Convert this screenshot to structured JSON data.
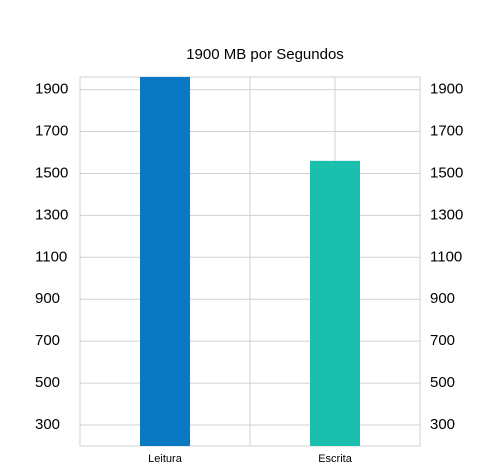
{
  "chart_data": {
    "type": "bar",
    "title": "1900 MB por Segundos",
    "categories": [
      "Leitura",
      "Escrita"
    ],
    "values": [
      1960,
      1560
    ],
    "colors": [
      "#0a78c2",
      "#1abfad"
    ],
    "ylim": [
      200,
      1960
    ],
    "yticks": [
      300,
      500,
      700,
      900,
      1100,
      1300,
      1500,
      1700,
      1900
    ],
    "y2lim": [
      200,
      1960
    ],
    "y2ticks": [
      300,
      500,
      700,
      900,
      1100,
      1300,
      1500,
      1700,
      1900
    ],
    "grid": true
  }
}
